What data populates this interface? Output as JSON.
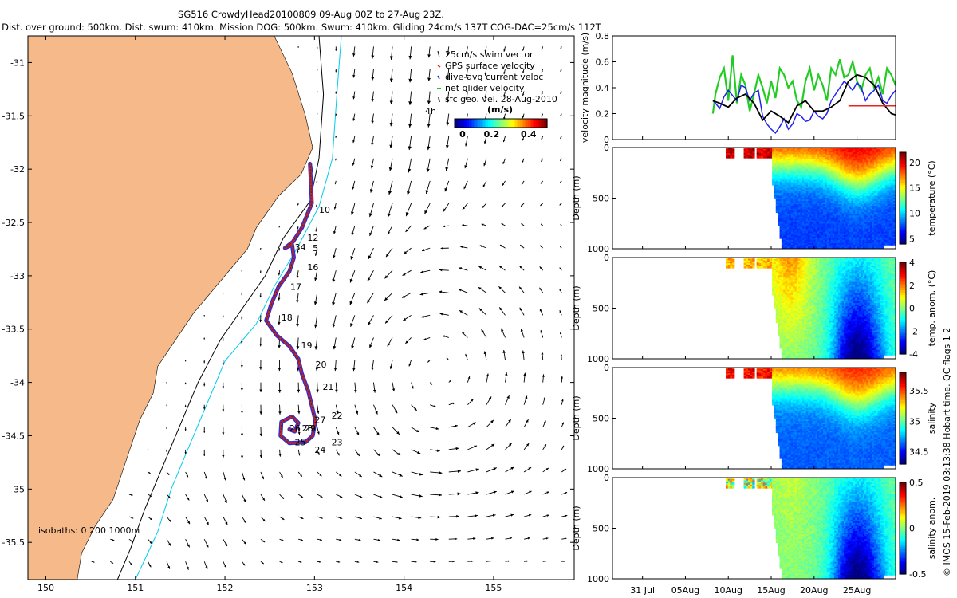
{
  "header": {
    "line1": "SG516 CrowdyHead20100809 09-Aug 00Z to 27-Aug 23Z.",
    "line2": "Dist. over ground: 500km. Dist. swum: 410km. Mission DOG: 500km. Swum: 410km. Gliding 24cm/s 137T COG-DAC=25cm/s 112T"
  },
  "side_note": "© IMOS 15-Feb-2019 03:13:38 Hobart time. QC flags 1  2",
  "chart_data": [
    {
      "type": "map",
      "xlabel": "",
      "ylabel": "",
      "xlim": [
        149.8,
        155.9
      ],
      "ylim": [
        -35.85,
        -30.75
      ],
      "x_ticks": [
        "150",
        "151",
        "152",
        "153",
        "154",
        "155"
      ],
      "y_ticks": [
        "-31",
        "-31.5",
        "-32",
        "-32.5",
        "-33",
        "-33.5",
        "-34",
        "-34.5",
        "-35",
        "-35.5"
      ],
      "legend": [
        "25cm/s swim vector",
        "GPS surface velocity",
        "dive-avg current veloc",
        "net glider velocity",
        "sfc geo. vel. 28-Aug-2010"
      ],
      "legend_placement": "top-right",
      "colorbar": {
        "label": "(m/s)",
        "ticks": [
          "0",
          "0.2",
          "0.4"
        ],
        "range": [
          0,
          0.5
        ],
        "colormap": "jet"
      },
      "note_4h": "4h",
      "isobaths_label": "isobaths: 0  200  1000m",
      "land_color": "#f5b98a",
      "isobath_colors": {
        "200m": "#000000",
        "1000m": "#00ccee"
      },
      "track": [
        {
          "lon": 152.96,
          "lat": -32.02
        },
        {
          "lon": 152.95,
          "lat": -31.95
        },
        {
          "lon": 152.97,
          "lat": -32.32
        },
        {
          "lon": 152.86,
          "lat": -32.55
        },
        {
          "lon": 152.76,
          "lat": -32.68
        },
        {
          "lon": 152.67,
          "lat": -32.74
        },
        {
          "lon": 152.75,
          "lat": -32.71
        },
        {
          "lon": 152.77,
          "lat": -32.83
        },
        {
          "lon": 152.72,
          "lat": -32.96
        },
        {
          "lon": 152.6,
          "lat": -33.1
        },
        {
          "lon": 152.52,
          "lat": -33.26
        },
        {
          "lon": 152.46,
          "lat": -33.42
        },
        {
          "lon": 152.58,
          "lat": -33.56
        },
        {
          "lon": 152.72,
          "lat": -33.66
        },
        {
          "lon": 152.82,
          "lat": -33.78
        },
        {
          "lon": 152.86,
          "lat": -33.92
        },
        {
          "lon": 152.93,
          "lat": -34.08
        },
        {
          "lon": 152.97,
          "lat": -34.22
        },
        {
          "lon": 153.01,
          "lat": -34.36
        },
        {
          "lon": 152.98,
          "lat": -34.5
        },
        {
          "lon": 152.9,
          "lat": -34.56
        },
        {
          "lon": 152.72,
          "lat": -34.57
        },
        {
          "lon": 152.62,
          "lat": -34.5
        },
        {
          "lon": 152.63,
          "lat": -34.37
        },
        {
          "lon": 152.75,
          "lat": -34.32
        },
        {
          "lon": 152.82,
          "lat": -34.38
        },
        {
          "lon": 152.78,
          "lat": -34.46
        },
        {
          "lon": 152.72,
          "lat": -34.44
        }
      ],
      "day_labels": [
        {
          "label": "10",
          "lon": 153.05,
          "lat": -32.41
        },
        {
          "label": "12",
          "lon": 152.92,
          "lat": -32.67
        },
        {
          "label": "5",
          "lon": 152.98,
          "lat": -32.77
        },
        {
          "label": "34",
          "lon": 152.78,
          "lat": -32.76
        },
        {
          "label": "16",
          "lon": 152.92,
          "lat": -32.95
        },
        {
          "label": "17",
          "lon": 152.73,
          "lat": -33.13
        },
        {
          "label": "18",
          "lon": 152.63,
          "lat": -33.42
        },
        {
          "label": "19",
          "lon": 152.85,
          "lat": -33.68
        },
        {
          "label": "20",
          "lon": 153.01,
          "lat": -33.86
        },
        {
          "label": "21",
          "lon": 153.09,
          "lat": -34.07
        },
        {
          "label": "22",
          "lon": 153.19,
          "lat": -34.34
        },
        {
          "label": "27",
          "lon": 153.0,
          "lat": -34.38
        },
        {
          "label": "26",
          "lon": 152.72,
          "lat": -34.46
        },
        {
          "label": "29",
          "lon": 152.89,
          "lat": -34.46
        },
        {
          "label": "28",
          "lon": 152.86,
          "lat": -34.46
        },
        {
          "label": "25",
          "lon": 152.78,
          "lat": -34.59
        },
        {
          "label": "24",
          "lon": 153.0,
          "lat": -34.66
        },
        {
          "label": "23",
          "lon": 153.19,
          "lat": -34.59
        }
      ]
    },
    {
      "type": "line",
      "ylabel": "velocity magnitude (m/s)",
      "ylim": [
        0,
        0.8
      ],
      "y_ticks": [
        "0",
        "0.2",
        "0.4",
        "0.6",
        "0.8"
      ],
      "x_start_day": 16,
      "series": [
        {
          "color": "#22cc22",
          "x": [
            24.2,
            24.5,
            25.0,
            25.5,
            26.0,
            26.5,
            27.0,
            27.5,
            28.0,
            28.5,
            29.0,
            29.5,
            30.0,
            30.5,
            31.0,
            31.5,
            32.0,
            32.5,
            33.0,
            33.5,
            34.0,
            34.5,
            35.0,
            35.5,
            36.0,
            36.5,
            37.0,
            37.5,
            38.0,
            38.5,
            39.0,
            39.5,
            40.0,
            40.5,
            41.0,
            41.5,
            42.0,
            42.5,
            43.0,
            43.5,
            44.0,
            44.5,
            45.0,
            45.5,
            46.0,
            46.5,
            47.0,
            47.5,
            48.0,
            48.5,
            49.0,
            49.5,
            50.0,
            50.5,
            51.0,
            51.5,
            52.0,
            52.5,
            53.0
          ],
          "values": [
            0.2,
            0.35,
            0.48,
            0.55,
            0.3,
            0.65,
            0.28,
            0.5,
            0.42,
            0.22,
            0.35,
            0.5,
            0.4,
            0.28,
            0.45,
            0.32,
            0.55,
            0.5,
            0.4,
            0.45,
            0.3,
            0.25,
            0.45,
            0.55,
            0.38,
            0.5,
            0.42,
            0.3,
            0.55,
            0.5,
            0.62,
            0.48,
            0.5,
            0.6,
            0.45,
            0.38,
            0.5,
            0.55,
            0.4,
            0.48,
            0.35,
            0.55,
            0.5,
            0.42,
            0.38,
            0.45,
            0.5,
            0.28,
            0.32,
            0.36,
            0.4,
            0.45,
            0.38,
            0.4,
            0.45,
            0.55,
            0.42,
            0.48,
            0.5
          ]
        },
        {
          "color": "#2222ee",
          "x": [
            24.2,
            24.5,
            25.0,
            25.5,
            26.0,
            26.5,
            27.0,
            27.5,
            28.0,
            28.5,
            29.0,
            29.5,
            30.0,
            30.5,
            31.0,
            31.5,
            32.0,
            32.5,
            33.0,
            33.5,
            34.0,
            34.5,
            35.0,
            35.5,
            36.0,
            36.5,
            37.0,
            37.5,
            38.0,
            38.5,
            39.0,
            39.5,
            40.0,
            40.5,
            41.0,
            41.5,
            42.0,
            42.5,
            43.0,
            43.5,
            44.0,
            44.5,
            45.0,
            45.5,
            46.0,
            46.5,
            47.0,
            47.5,
            48.0,
            48.5,
            49.0,
            49.5,
            50.0,
            50.5,
            51.0,
            51.5,
            52.0,
            52.5,
            53.0
          ],
          "values": [
            0.3,
            0.28,
            0.24,
            0.33,
            0.38,
            0.34,
            0.3,
            0.42,
            0.4,
            0.3,
            0.36,
            0.38,
            0.18,
            0.12,
            0.08,
            0.05,
            0.1,
            0.16,
            0.08,
            0.12,
            0.2,
            0.18,
            0.14,
            0.15,
            0.22,
            0.18,
            0.16,
            0.2,
            0.3,
            0.35,
            0.4,
            0.45,
            0.42,
            0.38,
            0.44,
            0.4,
            0.3,
            0.35,
            0.38,
            0.42,
            0.3,
            0.28,
            0.34,
            0.38,
            0.3,
            0.2,
            0.15,
            0.18,
            0.12,
            0.15,
            0.2,
            0.25,
            0.32,
            0.36,
            0.3,
            0.2,
            0.18,
            0.22,
            0.25
          ]
        },
        {
          "color": "#000000",
          "x": [
            24.2,
            25.0,
            26.0,
            27.0,
            28.0,
            29.0,
            30.0,
            31.0,
            32.0,
            33.0,
            34.0,
            35.0,
            36.0,
            37.0,
            38.0,
            39.0,
            40.0,
            41.0,
            42.0,
            43.0,
            44.0,
            45.0,
            46.0,
            47.0,
            48.0,
            49.0,
            50.0,
            51.0,
            52.0,
            53.0
          ],
          "values": [
            0.3,
            0.28,
            0.25,
            0.32,
            0.35,
            0.28,
            0.15,
            0.22,
            0.18,
            0.13,
            0.26,
            0.3,
            0.22,
            0.22,
            0.25,
            0.3,
            0.45,
            0.5,
            0.48,
            0.42,
            0.28,
            0.2,
            0.18,
            0.22,
            0.18,
            0.2,
            0.25,
            0.2,
            0.16,
            0.15
          ]
        },
        {
          "color": "#ee2222",
          "x": [
            40.0,
            50.5
          ],
          "values": [
            0.26,
            0.26
          ]
        }
      ]
    },
    {
      "type": "heatmap",
      "ylabel": "Depth (m)",
      "colorbar_label": "temperature (°C)",
      "colorbar_ticks": [
        "5",
        "10",
        "15",
        "20"
      ],
      "vmin": 4,
      "vmax": 22,
      "ylim": [
        1000,
        0
      ],
      "surface_value": 20.5,
      "deep_value": 5,
      "anomaly": false,
      "profile_start_day": 30
    },
    {
      "type": "heatmap",
      "ylabel": "Depth (m)",
      "colorbar_label": "temp. anom. (°C)",
      "colorbar_ticks": [
        "-4",
        "-2",
        "0",
        "2",
        "4"
      ],
      "vmin": -4,
      "vmax": 4,
      "ylim": [
        1000,
        0
      ],
      "surface_value": 1.5,
      "deep_value": -3.6,
      "anomaly": true,
      "profile_start_day": 30
    },
    {
      "type": "heatmap",
      "ylabel": "Depth (m)",
      "colorbar_label": "salinity",
      "colorbar_ticks": [
        "34.5",
        "35",
        "35.5"
      ],
      "vmin": 34.3,
      "vmax": 35.8,
      "ylim": [
        1000,
        0
      ],
      "surface_value": 35.6,
      "deep_value": 34.45,
      "anomaly": false,
      "profile_start_day": 30
    },
    {
      "type": "heatmap",
      "ylabel": "Depth (m)",
      "colorbar_label": "salinity anom.",
      "colorbar_ticks": [
        "-0.5",
        "0",
        "0.5"
      ],
      "vmin": -0.5,
      "vmax": 0.5,
      "ylim": [
        1000,
        0
      ],
      "surface_value": 0.05,
      "deep_value": -0.45,
      "anomaly": true,
      "profile_start_day": 30
    }
  ],
  "time_axis": {
    "labels": [
      "31 Jul",
      "05Aug",
      "10Aug",
      "15Aug",
      "20Aug",
      "25Aug"
    ],
    "label_days": [
      0,
      5,
      10,
      15,
      20,
      25
    ],
    "xlim_days": [
      -3.5,
      29.5
    ]
  },
  "depth_ticks": [
    "0",
    "500",
    "1000"
  ]
}
